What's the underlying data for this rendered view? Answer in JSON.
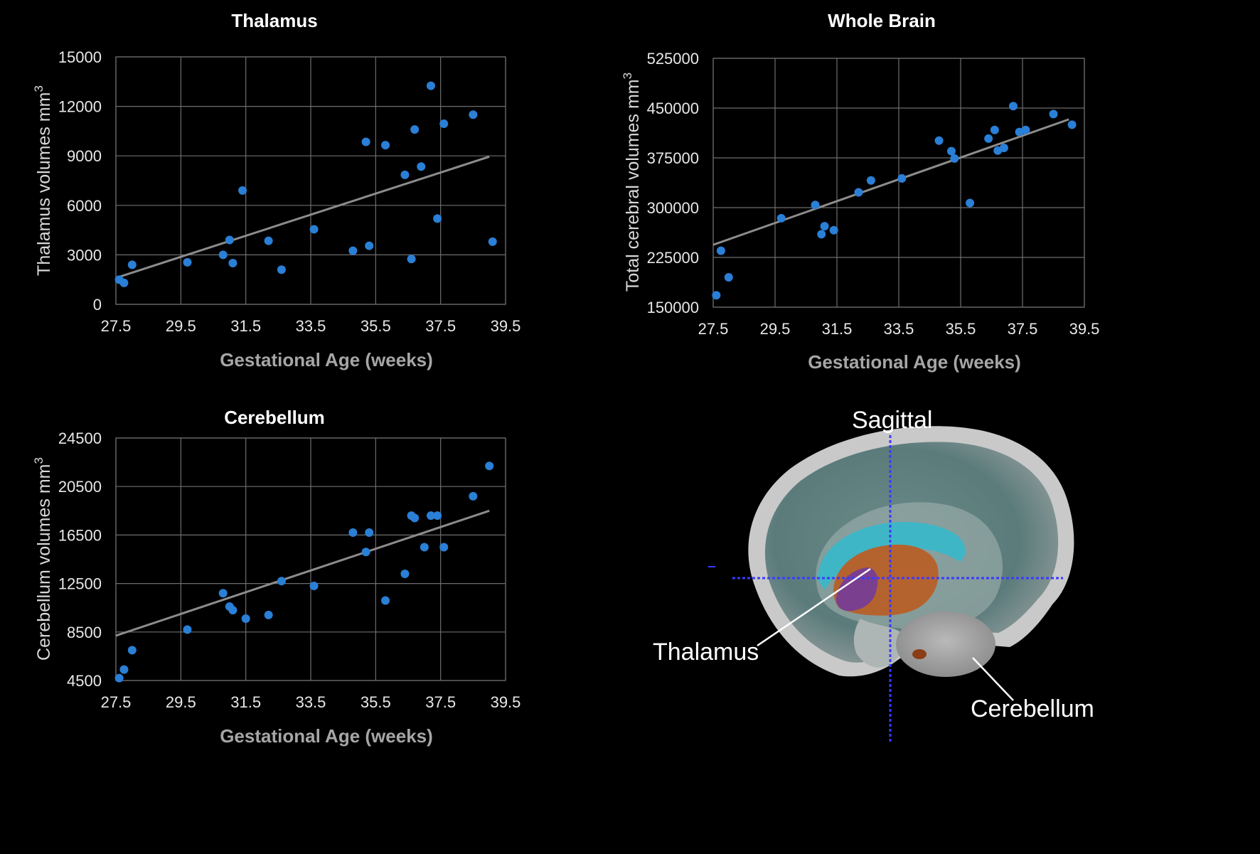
{
  "chart_data": [
    {
      "type": "scatter",
      "title": "Thalamus",
      "xlabel": "Gestational Age (weeks)",
      "ylabel": "Thalamus volumes mm",
      "ylabel_sup": "3",
      "xlim": [
        27.5,
        39.5
      ],
      "ylim": [
        0,
        15000
      ],
      "xticks": [
        27.5,
        29.5,
        31.5,
        33.5,
        35.5,
        37.5,
        39.5
      ],
      "xtick_labels": [
        "27.5",
        "29.5",
        "31.5",
        "33.5",
        "35.5",
        "37.5",
        "39.5"
      ],
      "yticks": [
        0,
        3000,
        6000,
        9000,
        12000,
        15000
      ],
      "ytick_labels": [
        "0",
        "3000",
        "6000",
        "9000",
        "12000",
        "15000"
      ],
      "grid": true,
      "series": [
        {
          "x": [
            27.6,
            27.75,
            28.0,
            29.7,
            30.8,
            31.0,
            31.1,
            31.4,
            32.2,
            32.6,
            33.6,
            34.8,
            35.2,
            35.3,
            35.8,
            36.4,
            36.6,
            36.7,
            36.9,
            37.2,
            37.4,
            37.6,
            38.5,
            39.1
          ],
          "y": [
            1500,
            1300,
            2400,
            2550,
            3000,
            3900,
            2500,
            6900,
            3850,
            2100,
            4550,
            3250,
            9850,
            3550,
            9650,
            7850,
            2750,
            10600,
            8350,
            13250,
            5200,
            10950,
            11500,
            3800
          ]
        }
      ],
      "trendline": {
        "x": [
          27.5,
          39.0
        ],
        "y": [
          1600,
          8950
        ]
      }
    },
    {
      "type": "scatter",
      "title": "Whole Brain",
      "xlabel": "Gestational Age (weeks)",
      "ylabel": "Total cerebral volumes mm",
      "ylabel_sup": "3",
      "xlim": [
        27.5,
        39.5
      ],
      "ylim": [
        150000,
        525000
      ],
      "xticks": [
        27.5,
        29.5,
        31.5,
        33.5,
        35.5,
        37.5,
        39.5
      ],
      "xtick_labels": [
        "27.5",
        "29.5",
        "31.5",
        "33.5",
        "35.5",
        "37.5",
        "39.5"
      ],
      "yticks": [
        150000,
        225000,
        300000,
        375000,
        450000,
        525000
      ],
      "ytick_labels": [
        "150000",
        "225000",
        "300000",
        "375000",
        "450000",
        "525000"
      ],
      "grid": true,
      "series": [
        {
          "x": [
            27.6,
            27.75,
            28.0,
            29.7,
            30.8,
            31.0,
            31.1,
            31.4,
            32.2,
            32.6,
            33.6,
            34.8,
            35.2,
            35.3,
            35.8,
            36.4,
            36.6,
            36.7,
            36.9,
            37.2,
            37.4,
            37.6,
            38.5,
            39.1
          ],
          "y": [
            168000,
            235000,
            195000,
            284000,
            304000,
            260000,
            272000,
            266000,
            323000,
            341000,
            344000,
            401000,
            385000,
            374000,
            307000,
            404000,
            417000,
            386000,
            390000,
            453000,
            414000,
            417000,
            441000,
            425000
          ]
        }
      ],
      "trendline": {
        "x": [
          27.5,
          39.0
        ],
        "y": [
          244000,
          433000
        ]
      }
    },
    {
      "type": "scatter",
      "title": "Cerebellum",
      "xlabel": "Gestational Age (weeks)",
      "ylabel": "Cerebellum volumes mm",
      "ylabel_sup": "3",
      "xlim": [
        27.5,
        39.5
      ],
      "ylim": [
        4500,
        24500
      ],
      "xticks": [
        27.5,
        29.5,
        31.5,
        33.5,
        35.5,
        37.5,
        39.5
      ],
      "xtick_labels": [
        "27.5",
        "29.5",
        "31.5",
        "33.5",
        "35.5",
        "37.5",
        "39.5"
      ],
      "yticks": [
        4500,
        8500,
        12500,
        16500,
        20500,
        24500
      ],
      "ytick_labels": [
        "4500",
        "8500",
        "12500",
        "16500",
        "20500",
        "24500"
      ],
      "grid": true,
      "series": [
        {
          "x": [
            27.6,
            27.75,
            28.0,
            29.7,
            30.8,
            31.0,
            31.1,
            31.5,
            32.2,
            32.6,
            33.6,
            34.8,
            35.2,
            35.3,
            35.8,
            36.4,
            36.6,
            36.7,
            37.0,
            37.2,
            37.4,
            37.6,
            38.5,
            39.0
          ],
          "y": [
            4700,
            5400,
            7000,
            8700,
            11700,
            10600,
            10300,
            9600,
            9900,
            12700,
            12300,
            16700,
            15100,
            16700,
            11100,
            13300,
            18100,
            17900,
            15500,
            18100,
            18100,
            15500,
            19700,
            22200
          ]
        }
      ],
      "trendline": {
        "x": [
          27.5,
          39.0
        ],
        "y": [
          8200,
          18500
        ]
      }
    }
  ],
  "brain_panel": {
    "sagittal_label": "Sagittal",
    "thalamus_label": "Thalamus",
    "cerebellum_label": "Cerebellum"
  }
}
